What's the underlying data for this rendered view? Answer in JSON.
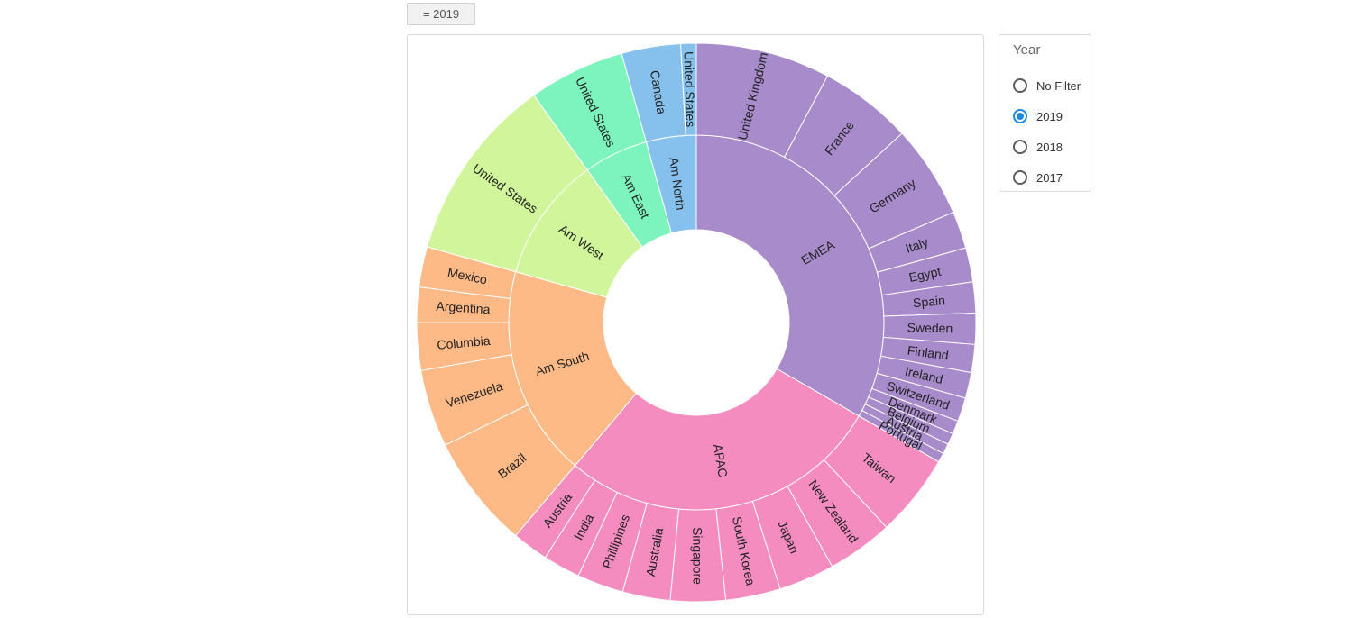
{
  "filter_chip": {
    "label": "= 2019"
  },
  "legend": {
    "title": "Year",
    "selected": "2019",
    "options": [
      {
        "label": "No Filter"
      },
      {
        "label": "2019"
      },
      {
        "label": "2018"
      },
      {
        "label": "2017"
      }
    ]
  },
  "chart_data": {
    "type": "sunburst",
    "regions": [
      {
        "name": "EMEA",
        "color": "#a78bcb",
        "countries": [
          {
            "name": "United Kingdom",
            "value": 13
          },
          {
            "name": "France",
            "value": 9
          },
          {
            "name": "Germany",
            "value": 9
          },
          {
            "name": "Italy",
            "value": 3.6
          },
          {
            "name": "Egypt",
            "value": 3.3
          },
          {
            "name": "Spain",
            "value": 3
          },
          {
            "name": "Sweden",
            "value": 3
          },
          {
            "name": "Finland",
            "value": 2.7
          },
          {
            "name": "Ireland",
            "value": 2.5
          },
          {
            "name": "Switzerland",
            "value": 2.3
          },
          {
            "name": "Denmark",
            "value": 1.3
          },
          {
            "name": "Belgium",
            "value": 1.1
          },
          {
            "name": "Austria",
            "value": 1
          },
          {
            "name": "Portugal",
            "value": 0.9
          }
        ]
      },
      {
        "name": "APAC",
        "color": "#f48cbf",
        "countries": [
          {
            "name": "Taiwan",
            "value": 8
          },
          {
            "name": "New Zealand",
            "value": 6.4
          },
          {
            "name": "Japan",
            "value": 5.4
          },
          {
            "name": "South Korea",
            "value": 5.3
          },
          {
            "name": "Singapore",
            "value": 5.3
          },
          {
            "name": "Australia",
            "value": 4.6
          },
          {
            "name": "Phillipines",
            "value": 4.5
          },
          {
            "name": "India",
            "value": 3.6
          },
          {
            "name": "Austria",
            "value": 3.5
          }
        ]
      },
      {
        "name": "Am South",
        "color": "#fdba87",
        "countries": [
          {
            "name": "Brazil",
            "value": 11
          },
          {
            "name": "Venezuela",
            "value": 7.5
          },
          {
            "name": "Columbia",
            "value": 4.6
          },
          {
            "name": "Argentina",
            "value": 3.4
          },
          {
            "name": "Mexico",
            "value": 3.9
          }
        ]
      },
      {
        "name": "Am West",
        "color": "#d1f59a",
        "countries": [
          {
            "name": "United States",
            "value": 18
          }
        ]
      },
      {
        "name": "Am East",
        "color": "#7df3bd",
        "countries": [
          {
            "name": "United States",
            "value": 9.3
          }
        ]
      },
      {
        "name": "Am North",
        "color": "#86c1ed",
        "countries": [
          {
            "name": "Canada",
            "value": 5.7
          },
          {
            "name": "United States",
            "value": 1.5
          }
        ]
      }
    ]
  }
}
